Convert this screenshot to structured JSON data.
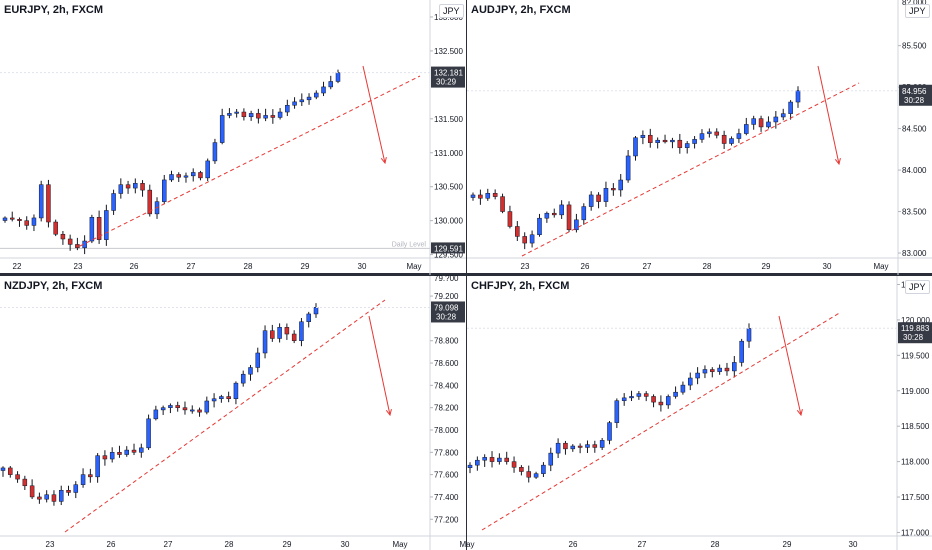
{
  "colors": {
    "up": "#2962ff",
    "down": "#d32f2f",
    "trend": "#e53935",
    "priceTag": "#363a45"
  },
  "chart_data": [
    {
      "type": "candlestick",
      "symbol": "EURJPY",
      "timeframe": "2h",
      "source": "FXCM",
      "title": "EURJPY, 2h, FXCM",
      "currency": "JPY",
      "ylim": [
        129.45,
        133.25
      ],
      "yticks": [
        "133.000",
        "132.500",
        "131.500",
        "131.000",
        "130.500",
        "130.000",
        "129.500"
      ],
      "xticks": [
        "22",
        "23",
        "26",
        "27",
        "28",
        "29",
        "30",
        "May"
      ],
      "x_range": [
        "22",
        "May"
      ],
      "last_price": "132.181",
      "countdown": "30:29",
      "daily_level": {
        "label": "Daily Level",
        "value": "129.591"
      },
      "closes": [
        130.04,
        130.02,
        130.0,
        129.93,
        130.04,
        130.53,
        129.98,
        129.8,
        129.73,
        129.65,
        129.6,
        129.7,
        130.05,
        129.72,
        130.15,
        130.4,
        130.53,
        130.48,
        130.55,
        130.45,
        130.1,
        130.28,
        130.6,
        130.68,
        130.64,
        130.66,
        130.71,
        130.63,
        130.88,
        131.15,
        131.55,
        131.58,
        131.6,
        131.53,
        131.58,
        131.51,
        131.55,
        131.52,
        131.6,
        131.7,
        131.75,
        131.78,
        131.82,
        131.88,
        131.97,
        132.05,
        132.18
      ]
    },
    {
      "type": "candlestick",
      "symbol": "AUDJPY",
      "timeframe": "2h",
      "source": "FXCM",
      "title": "AUDJPY, 2h, FXCM",
      "currency": "JPY",
      "ylim": [
        82.94,
        86.05
      ],
      "yticks": [
        "85.500",
        "85.000",
        "84.500",
        "84.000",
        "83.500",
        "83.000"
      ],
      "top_partial_tick": "8?.000",
      "xticks": [
        "23",
        "26",
        "27",
        "28",
        "29",
        "30",
        "May"
      ],
      "x_range": [
        "23",
        "May"
      ],
      "last_price": "84.956",
      "countdown": "30:28",
      "closes": [
        83.7,
        83.66,
        83.72,
        83.68,
        83.5,
        83.32,
        83.2,
        83.12,
        83.22,
        83.42,
        83.48,
        83.46,
        83.58,
        83.28,
        83.4,
        83.56,
        83.7,
        83.62,
        83.78,
        83.76,
        83.88,
        84.17,
        84.39,
        84.42,
        84.33,
        84.36,
        84.34,
        84.36,
        84.27,
        84.32,
        84.37,
        84.44,
        84.46,
        84.42,
        84.32,
        84.38,
        84.44,
        84.55,
        84.62,
        84.52,
        84.58,
        84.64,
        84.68,
        84.82,
        84.96
      ]
    },
    {
      "type": "candlestick",
      "symbol": "NZDJPY",
      "timeframe": "2h",
      "source": "FXCM",
      "title": "NZDJPY, 2h, FXCM",
      "currency": "JPY",
      "ylim": [
        77.05,
        79.38
      ],
      "yticks": [
        "79.200",
        "78.800",
        "78.600",
        "78.400",
        "78.200",
        "78.000",
        "77.800",
        "77.600",
        "77.400",
        "77.200"
      ],
      "top_partial_tick": "79.?00",
      "xticks": [
        "23",
        "26",
        "27",
        "28",
        "29",
        "30",
        "May"
      ],
      "x_range": [
        "23",
        "May"
      ],
      "last_price": "79.098",
      "countdown": "30:28",
      "closes": [
        77.66,
        77.6,
        77.56,
        77.5,
        77.4,
        77.38,
        77.42,
        77.36,
        77.46,
        77.44,
        77.51,
        77.6,
        77.58,
        77.77,
        77.74,
        77.8,
        77.78,
        77.82,
        77.8,
        77.84,
        78.1,
        78.18,
        78.2,
        78.22,
        78.2,
        78.18,
        78.18,
        78.16,
        78.26,
        78.28,
        78.3,
        78.28,
        78.42,
        78.5,
        78.56,
        78.69,
        78.89,
        78.82,
        78.92,
        78.86,
        78.8,
        78.97,
        79.04,
        79.1
      ]
    },
    {
      "type": "candlestick",
      "symbol": "CHFJPY",
      "timeframe": "2h",
      "source": "FXCM",
      "title": "CHFJPY, 2h, FXCM",
      "currency": "JPY",
      "ylim": [
        116.95,
        120.62
      ],
      "yticks": [
        "120.500",
        "120.000",
        "119.500",
        "119.000",
        "118.500",
        "118.000",
        "117.500",
        "117.000"
      ],
      "xticks": [
        "26",
        "27",
        "28",
        "29",
        "30",
        "May"
      ],
      "x_range": [
        "26",
        "May"
      ],
      "last_price": "119.883",
      "countdown": "30:28",
      "closes": [
        117.95,
        118.02,
        118.06,
        118.0,
        118.05,
        118.0,
        117.92,
        117.86,
        117.78,
        117.83,
        117.95,
        118.12,
        118.26,
        118.18,
        118.22,
        118.2,
        118.24,
        118.2,
        118.3,
        118.55,
        118.86,
        118.9,
        118.92,
        118.96,
        118.92,
        118.84,
        118.8,
        118.92,
        118.98,
        119.08,
        119.18,
        119.25,
        119.3,
        119.27,
        119.32,
        119.28,
        119.4,
        119.7,
        119.88
      ]
    }
  ]
}
